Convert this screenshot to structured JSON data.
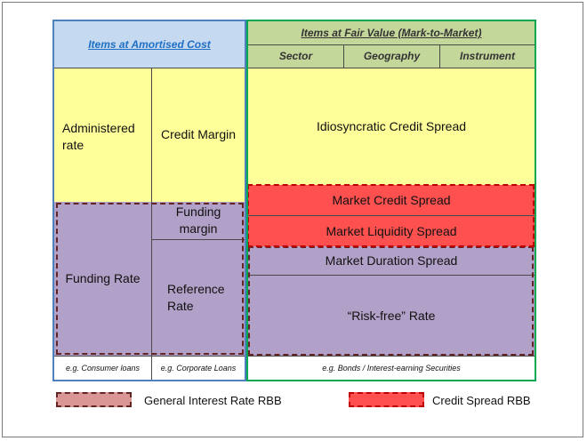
{
  "colors": {
    "blue_header": "#c5d9f1",
    "green_header": "#c4d79b",
    "yellow": "#ffff99",
    "purple": "#b1a0c7",
    "red": "#ff5050",
    "blue_border": "#4f81bd",
    "green_border": "#00a651",
    "dashed_purple": "#632523",
    "dashed_red": "#ff0000"
  },
  "amortised": {
    "header": "Items at Amortised Cost",
    "administered_rate": "Administered rate",
    "credit_margin": "Credit Margin",
    "funding_rate": "Funding Rate",
    "funding_margin": "Funding margin",
    "reference_rate": "Reference Rate",
    "foot_left": "e.g. Consumer loans",
    "foot_right": "e.g. Corporate Loans"
  },
  "fair_value": {
    "header": "Items at Fair Value (Mark-to-Market)",
    "subheaders": [
      "Sector",
      "Geography",
      "Instrument"
    ],
    "idiosyncratic": "Idiosyncratic Credit Spread",
    "market_credit": "Market Credit Spread",
    "market_liquidity": "Market Liquidity Spread",
    "market_duration": "Market Duration Spread",
    "risk_free": "“Risk-free” Rate",
    "foot": "e.g. Bonds / Interest-earning Securities"
  },
  "legend": {
    "general_irr": "General Interest Rate RBB",
    "credit_spread": "Credit Spread RBB"
  }
}
